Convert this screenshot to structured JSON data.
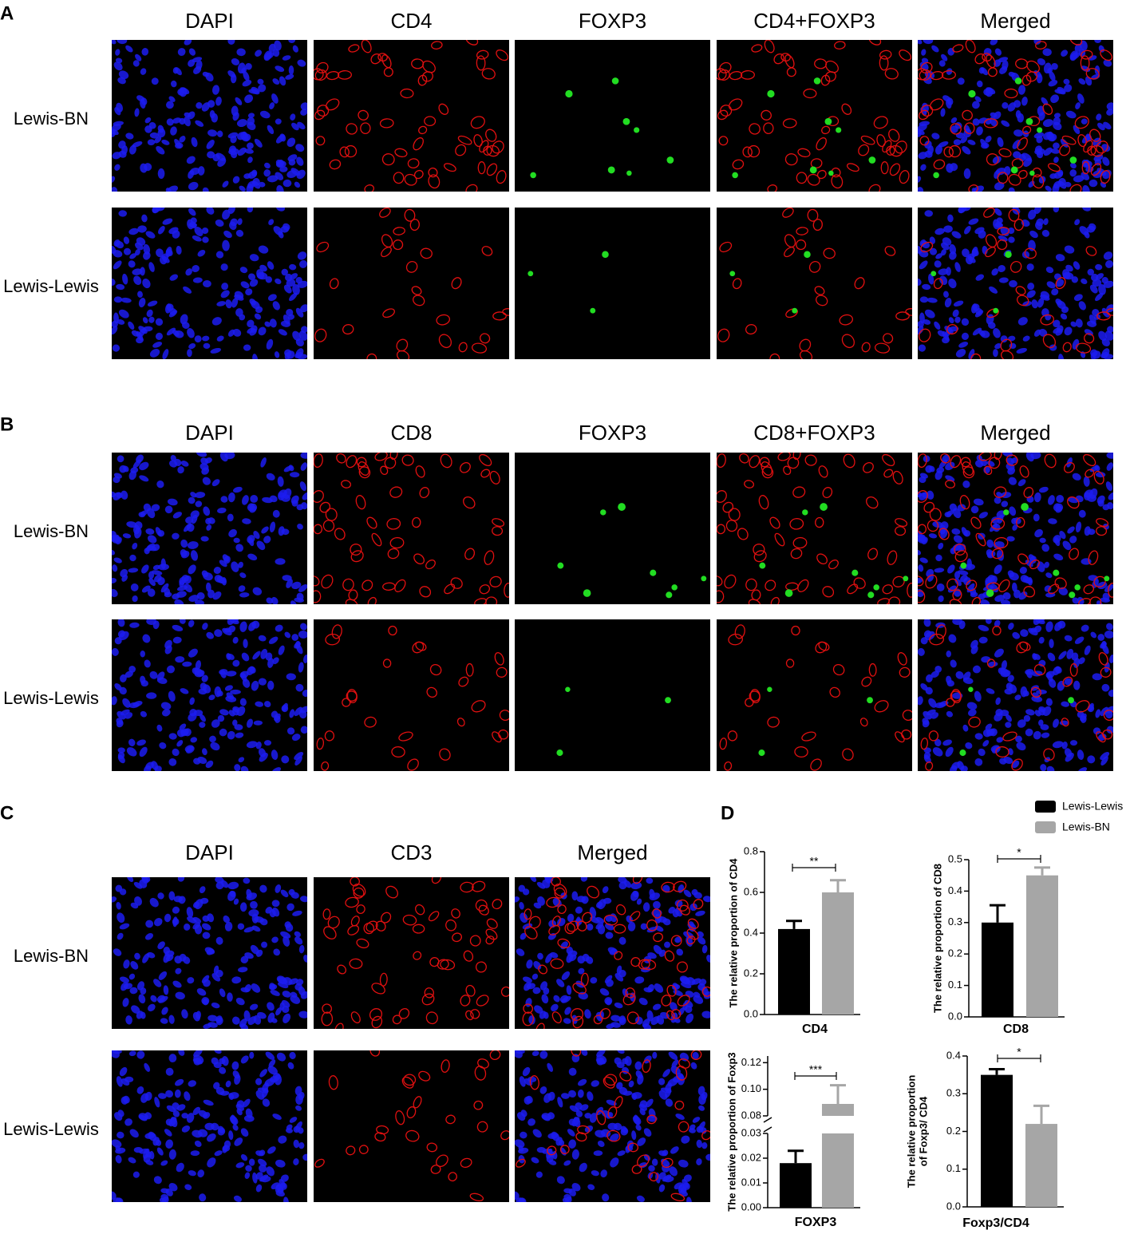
{
  "panels": [
    {
      "label": "A",
      "columns": [
        "DAPI",
        "CD4",
        "FOXP3",
        "CD4+FOXP3",
        "Merged"
      ],
      "rows": [
        "Lewis-BN",
        "Lewis-Lewis"
      ]
    },
    {
      "label": "B",
      "columns": [
        "DAPI",
        "CD8",
        "FOXP3",
        "CD8+FOXP3",
        "Merged"
      ],
      "rows": [
        "Lewis-BN",
        "Lewis-Lewis"
      ]
    },
    {
      "label": "C",
      "columns": [
        "DAPI",
        "CD3",
        "Merged"
      ],
      "rows": [
        "Lewis-BN",
        "Lewis-Lewis"
      ]
    }
  ],
  "panel_d": {
    "label": "D",
    "legend": [
      {
        "name": "Lewis-Lewis",
        "color": "#000000"
      },
      {
        "name": "Lewis-BN",
        "color": "#a6a6a6"
      }
    ]
  },
  "chart_data": [
    {
      "type": "bar",
      "xlabel": "CD4",
      "ylabel": [
        "The relative proportion of CD4"
      ],
      "values": [
        0.42,
        0.6
      ],
      "errors": [
        0.04,
        0.06
      ],
      "ylim": [
        0,
        0.8
      ],
      "yticks": [
        {
          "value": 0,
          "label": "0.0"
        },
        0.2,
        0.4,
        0.6,
        0.8
      ],
      "significance": "**"
    },
    {
      "type": "bar",
      "xlabel": "CD8",
      "ylabel": [
        "The relative proportion of CD8"
      ],
      "values": [
        0.3,
        0.45
      ],
      "errors": [
        0.055,
        0.025
      ],
      "ylim": [
        0,
        0.5
      ],
      "yticks": [
        {
          "value": 0,
          "label": "0.0"
        },
        0.1,
        0.2,
        0.3,
        0.4,
        0.5
      ],
      "significance": "*"
    },
    {
      "type": "bar",
      "xlabel": "FOXP3",
      "ylabel": [
        "The relative proportion of Foxp3"
      ],
      "values": [
        0.018,
        0.089
      ],
      "errors": [
        0.005,
        0.014
      ],
      "ylim": [
        0,
        0.125
      ],
      "axis_break": [
        0.03,
        0.08
      ],
      "yticks": [
        {
          "value": 0,
          "label": "0.00"
        },
        0.01,
        0.02,
        0.03,
        0.08,
        {
          "value": 0.1,
          "label": "0.10"
        },
        0.12
      ],
      "significance": "***"
    },
    {
      "type": "bar",
      "xlabel": "Foxp3/CD4",
      "ylabel": [
        "The relative proportion",
        "of Foxp3/ CD4"
      ],
      "values": [
        0.35,
        0.22
      ],
      "errors": [
        0.015,
        0.048
      ],
      "ylim": [
        0,
        0.4
      ],
      "yticks": [
        {
          "value": 0,
          "label": "0.0"
        },
        0.1,
        0.2,
        0.3,
        0.4
      ],
      "significance": "*"
    }
  ]
}
